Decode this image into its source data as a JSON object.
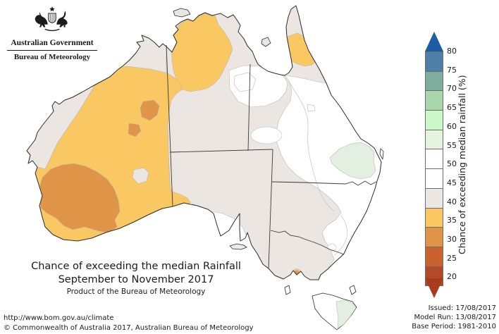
{
  "header": {
    "government": "Australian Government",
    "agency": "Bureau of Meteorology"
  },
  "title": {
    "line1": "Chance of exceeding the median Rainfall",
    "line2": "September to November 2017",
    "line3": "Product of the Bureau of Meteorology"
  },
  "legend": {
    "label": "Chance of exceeding median rainfall (%)",
    "ticks": [
      "80",
      "75",
      "70",
      "65",
      "60",
      "55",
      "50",
      "45",
      "40",
      "35",
      "30",
      "25",
      "20"
    ],
    "segment_colors": [
      "#4d80a4",
      "#7fae9f",
      "#a9d7ac",
      "#cdf9c8",
      "#e7f3e1",
      "#ffffff",
      "#ffffff",
      "#ece7e2",
      "#fac863",
      "#e09448",
      "#c9622f",
      "#b14a28"
    ],
    "arrow_top_color": "#1b5ea7",
    "arrow_bottom_color": "#a83d1d"
  },
  "palette": {
    "land_white_45_50": "#ffffff",
    "grey_40_45": "#ebe6e1",
    "yellow_35_40": "#fac863",
    "orange_30_35": "#e09448",
    "green_55_60": "#e3efe0",
    "coast": "#2b2b2b",
    "contour_line": "#c8c8c8",
    "state_border": "#3a3a3a",
    "crest": "#1c1c1c"
  },
  "map_regions": [
    {
      "region": "Northwest WA coast and Kimberley fringe",
      "chance_pct": "40-45"
    },
    {
      "region": "Western Australia interior and south",
      "chance_pct": "35-40"
    },
    {
      "region": "Southwest Western Australia",
      "chance_pct": "30-35"
    },
    {
      "region": "Central WA small patches",
      "chance_pct": "30-35"
    },
    {
      "region": "Top End Northern Territory",
      "chance_pct": "35-40"
    },
    {
      "region": "Central Australia, SA, western NSW and Victoria",
      "chance_pct": "40-45"
    },
    {
      "region": "Cape York peninsula patch",
      "chance_pct": "35-40"
    },
    {
      "region": "Cape York and gulf fringe",
      "chance_pct": "40-45"
    },
    {
      "region": "Eastern Queensland and NSW coast",
      "chance_pct": "45-50"
    },
    {
      "region": "Southeast Queensland",
      "chance_pct": "55-60"
    },
    {
      "region": "Eastern Tasmania",
      "chance_pct": "55-60"
    },
    {
      "region": "Kangaroo Island",
      "chance_pct": "55-60"
    },
    {
      "region": "Port Phillip (Melbourne)",
      "chance_pct": "30-35"
    }
  ],
  "footer": {
    "url": "http://www.bom.gov.au/climate",
    "copyright": "© Commonwealth of Australia 2017, Australian Bureau of Meteorology",
    "issued": "Issued: 17/08/2017",
    "model_run": "Model Run: 13/08/2017",
    "base_period": "Base Period: 1981-2010"
  }
}
